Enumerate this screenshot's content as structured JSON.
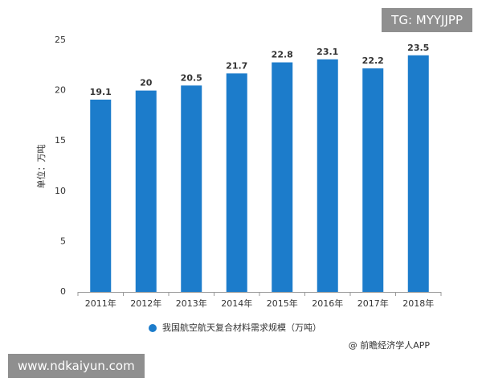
{
  "chart_data": {
    "type": "bar",
    "y_label": "单位：万吨",
    "categories": [
      "2011年",
      "2012年",
      "2013年",
      "2014年",
      "2015年",
      "2016年",
      "2017年",
      "2018年"
    ],
    "series": [
      {
        "name": "我国航空航天复合材料需求规模（万吨）",
        "color": "#1c7ccb",
        "values": [
          19.1,
          20,
          20.5,
          21.7,
          22.8,
          23.1,
          22.2,
          23.5
        ]
      }
    ],
    "ylim": [
      0,
      25
    ],
    "yticks": [
      0,
      5,
      10,
      15,
      20,
      25
    ],
    "grid": false,
    "source": "@ 前瞻经济学人APP"
  },
  "overlays": {
    "top_right": "TG: MYYJJPP",
    "bottom_left": "www.ndkaiyun.com"
  }
}
